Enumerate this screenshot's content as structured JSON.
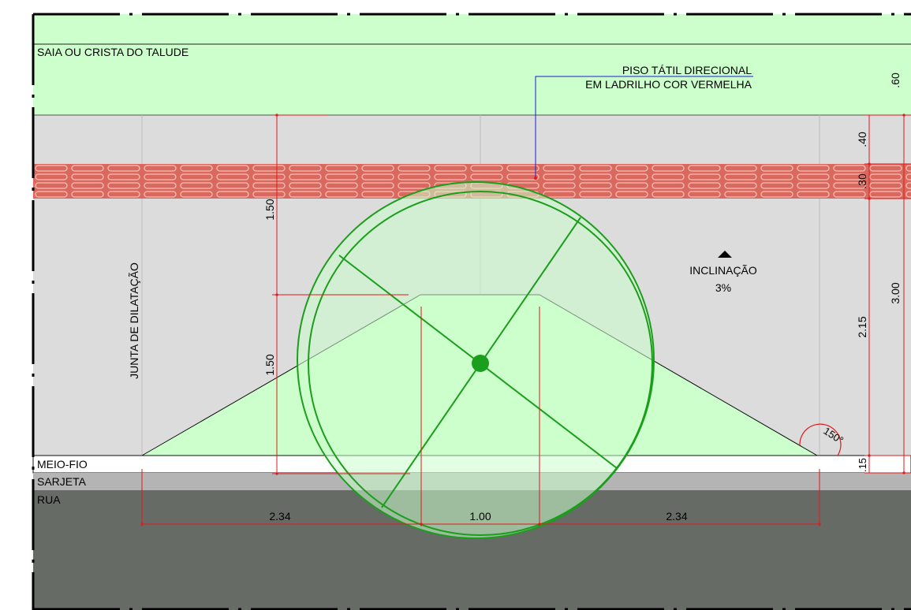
{
  "labels": {
    "slope_edge": "SAIA OU CRISTA DO TALUDE",
    "tactile_line1": "PISO TÁTIL DIRECIONAL",
    "tactile_line2": "EM LADRILHO COR VERMELHA",
    "joint": "JUNTA DE DILATAÇÃO",
    "inclination_line1": "INCLINAÇÃO",
    "inclination_line2": "3%",
    "curb": "MEIO-FIO",
    "gutter": "SARJETA",
    "street": "RUA",
    "angle": "150°"
  },
  "dimensions": {
    "ramp_height_upper": "1.50",
    "ramp_height_lower": "1.50",
    "bottom_left": "2.34",
    "bottom_center": "1.00",
    "bottom_right": "2.34",
    "right_60": ".60",
    "right_40": ".40",
    "right_30": ".30",
    "right_215": "2.15",
    "right_15": ".15",
    "right_300": "3.00"
  },
  "colors": {
    "grass": "#ccffcc",
    "sidewalk": "#dcdcdc",
    "tactile": "#d9695f",
    "tactile_stroke": "#f4b4ab",
    "ramp": "#ccffcc",
    "curb": "#ffffff",
    "gutter": "#b4b4b4",
    "street": "#666b66",
    "dimension": "#e0191b",
    "wheelchair": "#1b9e1b",
    "leader": "#1a1adb"
  }
}
